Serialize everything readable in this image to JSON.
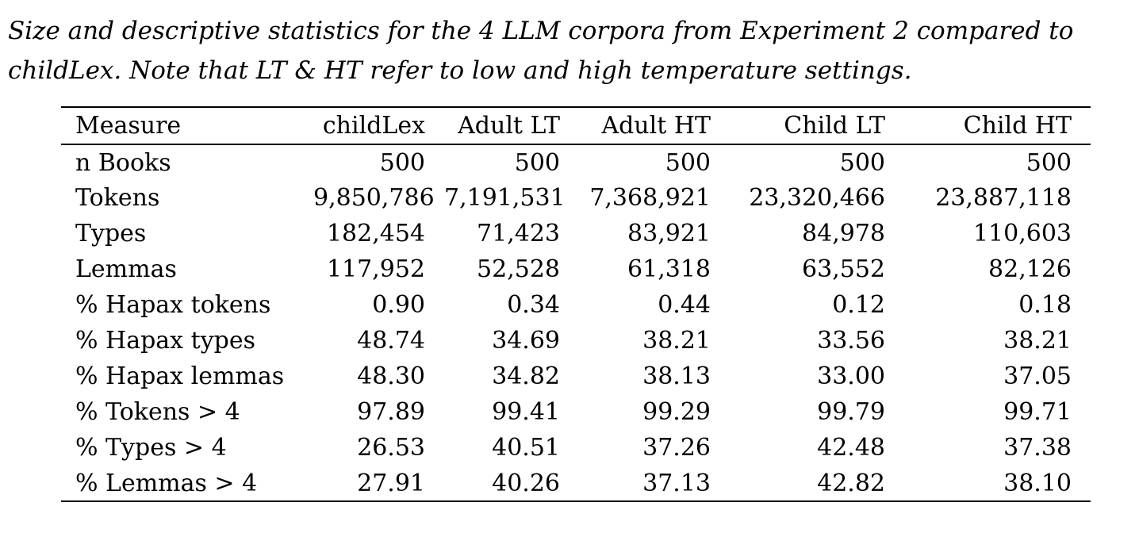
{
  "caption": {
    "lines": [
      "Size and descriptive statistics for the 4 LLM corpora from Experiment 2 compared to",
      "childLex. Note that LT & HT refer to low and high temperature settings."
    ]
  },
  "chart_data": {
    "type": "table",
    "title": "Size and descriptive statistics for the 4 LLM corpora from Experiment 2 compared to childLex",
    "columns": [
      "Measure",
      "childLex",
      "Adult LT",
      "Adult HT",
      "Child LT",
      "Child HT"
    ],
    "rows": [
      [
        "n Books",
        "500",
        "500",
        "500",
        "500",
        "500"
      ],
      [
        "Tokens",
        "9,850,786",
        "7,191,531",
        "7,368,921",
        "23,320,466",
        "23,887,118"
      ],
      [
        "Types",
        "182,454",
        "71,423",
        "83,921",
        "84,978",
        "110,603"
      ],
      [
        "Lemmas",
        "117,952",
        "52,528",
        "61,318",
        "63,552",
        "82,126"
      ],
      [
        "% Hapax tokens",
        "0.90",
        "0.34",
        "0.44",
        "0.12",
        "0.18"
      ],
      [
        "% Hapax types",
        "48.74",
        "34.69",
        "38.21",
        "33.56",
        "38.21"
      ],
      [
        "% Hapax lemmas",
        "48.30",
        "34.82",
        "38.13",
        "33.00",
        "37.05"
      ],
      [
        "% Tokens > 4",
        "97.89",
        "99.41",
        "99.29",
        "99.79",
        "99.71"
      ],
      [
        "% Types > 4",
        "26.53",
        "40.51",
        "37.26",
        "42.48",
        "37.38"
      ],
      [
        "% Lemmas > 4",
        "27.91",
        "40.26",
        "37.13",
        "42.82",
        "38.10"
      ]
    ]
  },
  "colors": {
    "text": "#000000",
    "background": "#ffffff",
    "rule": "#000000"
  }
}
